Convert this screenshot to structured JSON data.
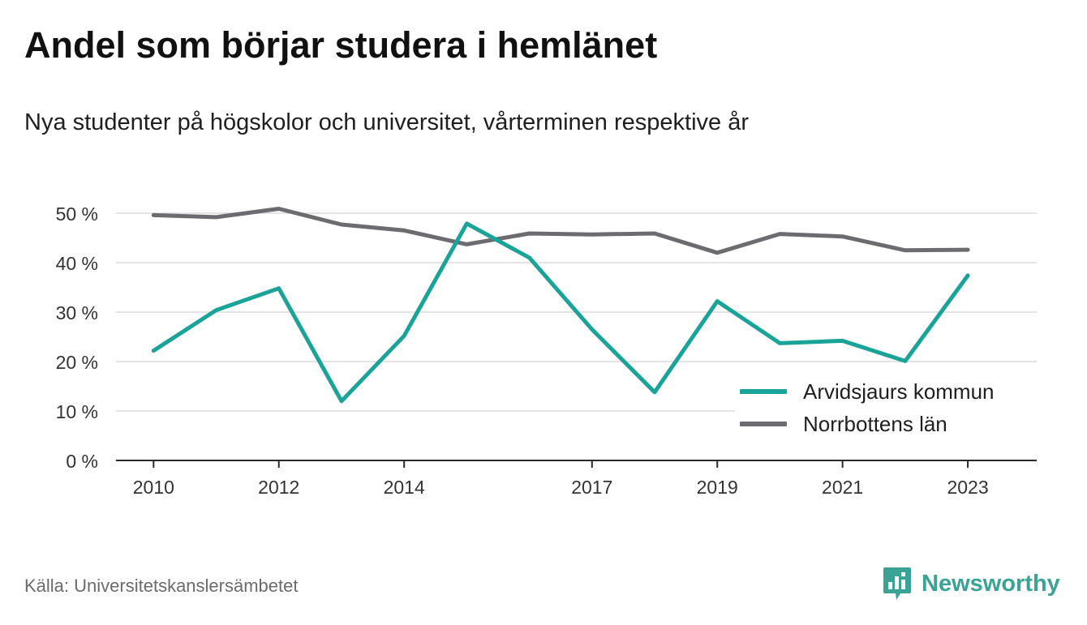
{
  "header": {
    "title": "Andel som börjar studera i hemlänet",
    "subtitle": "Nya studenter på högskolor och universitet, vårterminen respektive år"
  },
  "footer": {
    "source": "Källa: Universitetskanslersämbetet",
    "brand": "Newsworthy",
    "brand_icon": "newsworthy-logo-icon",
    "brand_color": "#3aa396"
  },
  "chart_data": {
    "type": "line",
    "title": "Andel som börjar studera i hemlänet",
    "subtitle": "Nya studenter på högskolor och universitet, vårterminen respektive år",
    "xlabel": "",
    "ylabel": "",
    "x": [
      2010,
      2011,
      2012,
      2013,
      2014,
      2015,
      2016,
      2017,
      2018,
      2019,
      2020,
      2021,
      2022,
      2023
    ],
    "x_tick_labels": [
      "2010",
      "2012",
      "2014",
      "2017",
      "2019",
      "2021",
      "2023"
    ],
    "x_tick_values": [
      2010,
      2012,
      2014,
      2017,
      2019,
      2021,
      2023
    ],
    "xlim": [
      2009.4,
      2024.1
    ],
    "y_ticks": [
      0,
      10,
      20,
      30,
      40,
      50
    ],
    "y_tick_labels": [
      "0 %",
      "10 %",
      "20 %",
      "30 %",
      "40 %",
      "50 %"
    ],
    "ylim": [
      0,
      50
    ],
    "grid": true,
    "legend_position": "bottom-right",
    "series": [
      {
        "name": "Arvidsjaurs kommun",
        "color": "#1aa399",
        "values": [
          22.2,
          30.4,
          34.8,
          12.0,
          25.2,
          47.9,
          41.0,
          26.5,
          13.8,
          32.2,
          23.7,
          24.2,
          20.1,
          37.4
        ]
      },
      {
        "name": "Norrbottens län",
        "color": "#6c6b70",
        "values": [
          49.6,
          49.2,
          50.9,
          47.7,
          46.5,
          43.7,
          45.9,
          45.7,
          45.9,
          42.0,
          45.8,
          45.3,
          42.5,
          42.6
        ]
      }
    ]
  }
}
